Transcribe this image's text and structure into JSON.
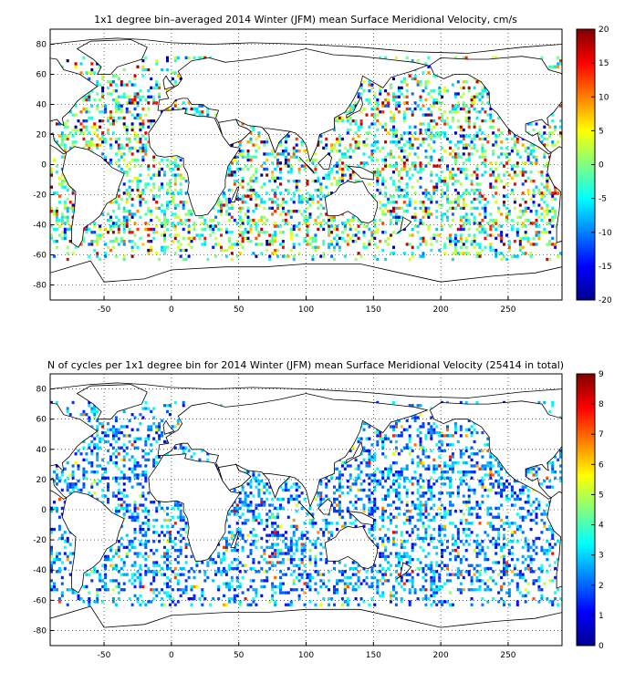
{
  "chart_data": [
    {
      "type": "heatmap",
      "title": "1x1 degree bin–averaged 2014 Winter (JFM) mean Surface Meridional Velocity, cm/s",
      "xlabel": "",
      "ylabel": "",
      "xlim": [
        -90,
        290
      ],
      "ylim": [
        -90,
        90
      ],
      "xticks": [
        -50,
        0,
        50,
        100,
        150,
        200,
        250
      ],
      "yticks": [
        80,
        60,
        40,
        20,
        0,
        -20,
        -40,
        -60,
        -80
      ],
      "grid": true,
      "grid_style": "dotted",
      "colormap": "jet",
      "colorbar": {
        "range": [
          -20,
          20
        ],
        "ticks": [
          20,
          15,
          10,
          5,
          0,
          -5,
          -10,
          -15,
          -20
        ],
        "placement": "right"
      },
      "basemap": "world coastlines",
      "cell_size_deg": 1
    },
    {
      "type": "heatmap",
      "title": "N of cycles per 1x1 degree bin for 2014 Winter (JFM) mean Surface Meridional Velocity (25414 in total)",
      "xlabel": "",
      "ylabel": "",
      "xlim": [
        -90,
        290
      ],
      "ylim": [
        -90,
        90
      ],
      "xticks": [
        -50,
        0,
        50,
        100,
        150,
        200,
        250
      ],
      "yticks": [
        80,
        60,
        40,
        20,
        0,
        -20,
        -40,
        -60,
        -80
      ],
      "grid": true,
      "grid_style": "dotted",
      "colormap": "jet",
      "colorbar": {
        "range": [
          0,
          9
        ],
        "ticks": [
          9,
          8,
          7,
          6,
          5,
          4,
          3,
          2,
          1,
          0
        ],
        "placement": "right"
      },
      "basemap": "world coastlines",
      "cell_size_deg": 1
    }
  ]
}
